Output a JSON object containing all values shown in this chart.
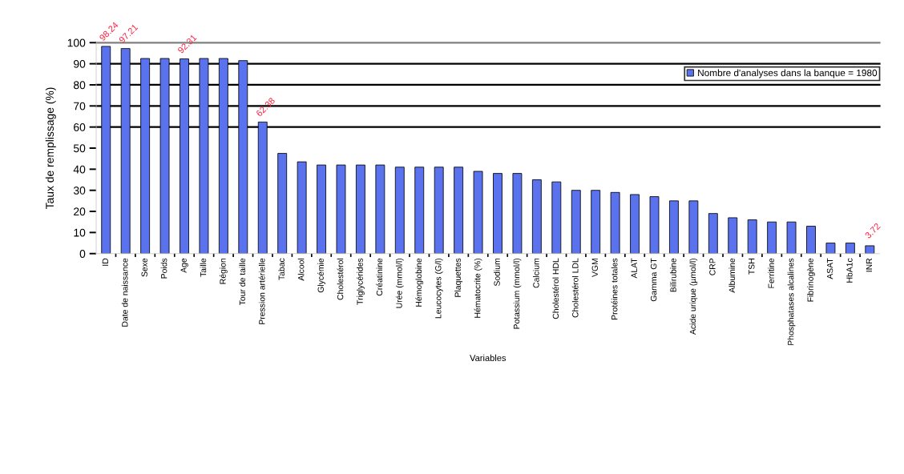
{
  "chart_data": {
    "type": "bar",
    "xlabel": "Variables",
    "ylabel": "Taux de remplissage (%)",
    "categories": [
      "ID",
      "Date de naissance",
      "Sexe",
      "Poids",
      "Age",
      "Taille",
      "Région",
      "Tour de taille",
      "Pression artérielle",
      "Tabac",
      "Alcool",
      "Glycémie",
      "Cholestérol",
      "Triglycérides",
      "Créatinine",
      "Urée (mmol/l)",
      "Hémoglobine",
      "Leucocytes (G/l)",
      "Plaquettes",
      "Hématocrite (%)",
      "Sodium",
      "Potassium (mmol/l)",
      "Calcium",
      "Cholestérol HDL",
      "Cholestérol LDL",
      "VGM",
      "Protéines totales",
      "ALAT",
      "Gamma GT",
      "Bilirubine",
      "Acide urique (µmol/l)",
      "CRP",
      "Albumine",
      "TSH",
      "Ferritine",
      "Phosphatases alcalines",
      "Fibrinogène",
      "ASAT",
      "HbA1c",
      "INR"
    ],
    "series": [
      {
        "name": "Nombre d'analyses dans la banque = 1980",
        "color": "#5a72ee",
        "values": [
          98.24,
          97.21,
          92.5,
          92.5,
          92.31,
          92.5,
          92.5,
          91.5,
          62.38,
          47.5,
          43.5,
          42,
          42,
          42,
          42,
          41,
          41,
          41,
          41,
          39,
          38,
          38,
          35,
          34,
          30,
          30,
          29,
          28,
          27,
          25,
          25,
          19,
          17,
          16,
          15,
          15,
          13,
          5,
          5,
          3.72
        ],
        "value_labels": [
          "98.24",
          "97.21",
          null,
          null,
          "92.31",
          null,
          null,
          null,
          "62.38",
          null,
          null,
          null,
          null,
          null,
          null,
          null,
          null,
          null,
          null,
          null,
          null,
          null,
          null,
          null,
          null,
          null,
          null,
          null,
          null,
          null,
          null,
          null,
          null,
          null,
          null,
          null,
          null,
          null,
          null,
          "3.72"
        ]
      }
    ],
    "ylim": [
      0,
      100
    ],
    "yticks": [
      0,
      10,
      20,
      30,
      40,
      50,
      60,
      70,
      80,
      90,
      100
    ],
    "legend": "top right",
    "ref_lines": [
      {
        "axis": "y",
        "value": 60,
        "color": "#000000"
      },
      {
        "axis": "y",
        "value": 70,
        "color": "#000000"
      },
      {
        "axis": "y",
        "value": 80,
        "color": "#000000"
      },
      {
        "axis": "y",
        "value": 90,
        "color": "#000000"
      },
      {
        "axis": "y",
        "value": 100,
        "color": "#808080"
      }
    ]
  }
}
